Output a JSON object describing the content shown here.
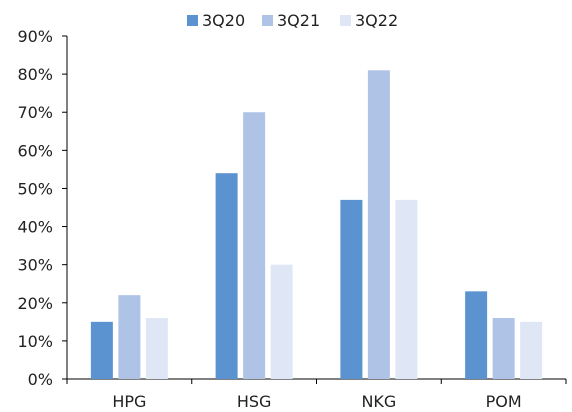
{
  "chart_data": {
    "type": "bar",
    "categories": [
      "HPG",
      "HSG",
      "NKG",
      "POM"
    ],
    "series": [
      {
        "name": "3Q20",
        "values": [
          15,
          54,
          47,
          23
        ],
        "color": "#5b93d1"
      },
      {
        "name": "3Q21",
        "values": [
          22,
          70,
          81,
          16
        ],
        "color": "#aec3e6"
      },
      {
        "name": "3Q22",
        "values": [
          16,
          30,
          47,
          15
        ],
        "color": "#dfe7f6"
      }
    ],
    "y_ticks": [
      "0%",
      "10%",
      "20%",
      "30%",
      "40%",
      "50%",
      "60%",
      "70%",
      "80%",
      "90%"
    ],
    "ylim": [
      0,
      90
    ],
    "grid": false,
    "legend": "top-center"
  }
}
